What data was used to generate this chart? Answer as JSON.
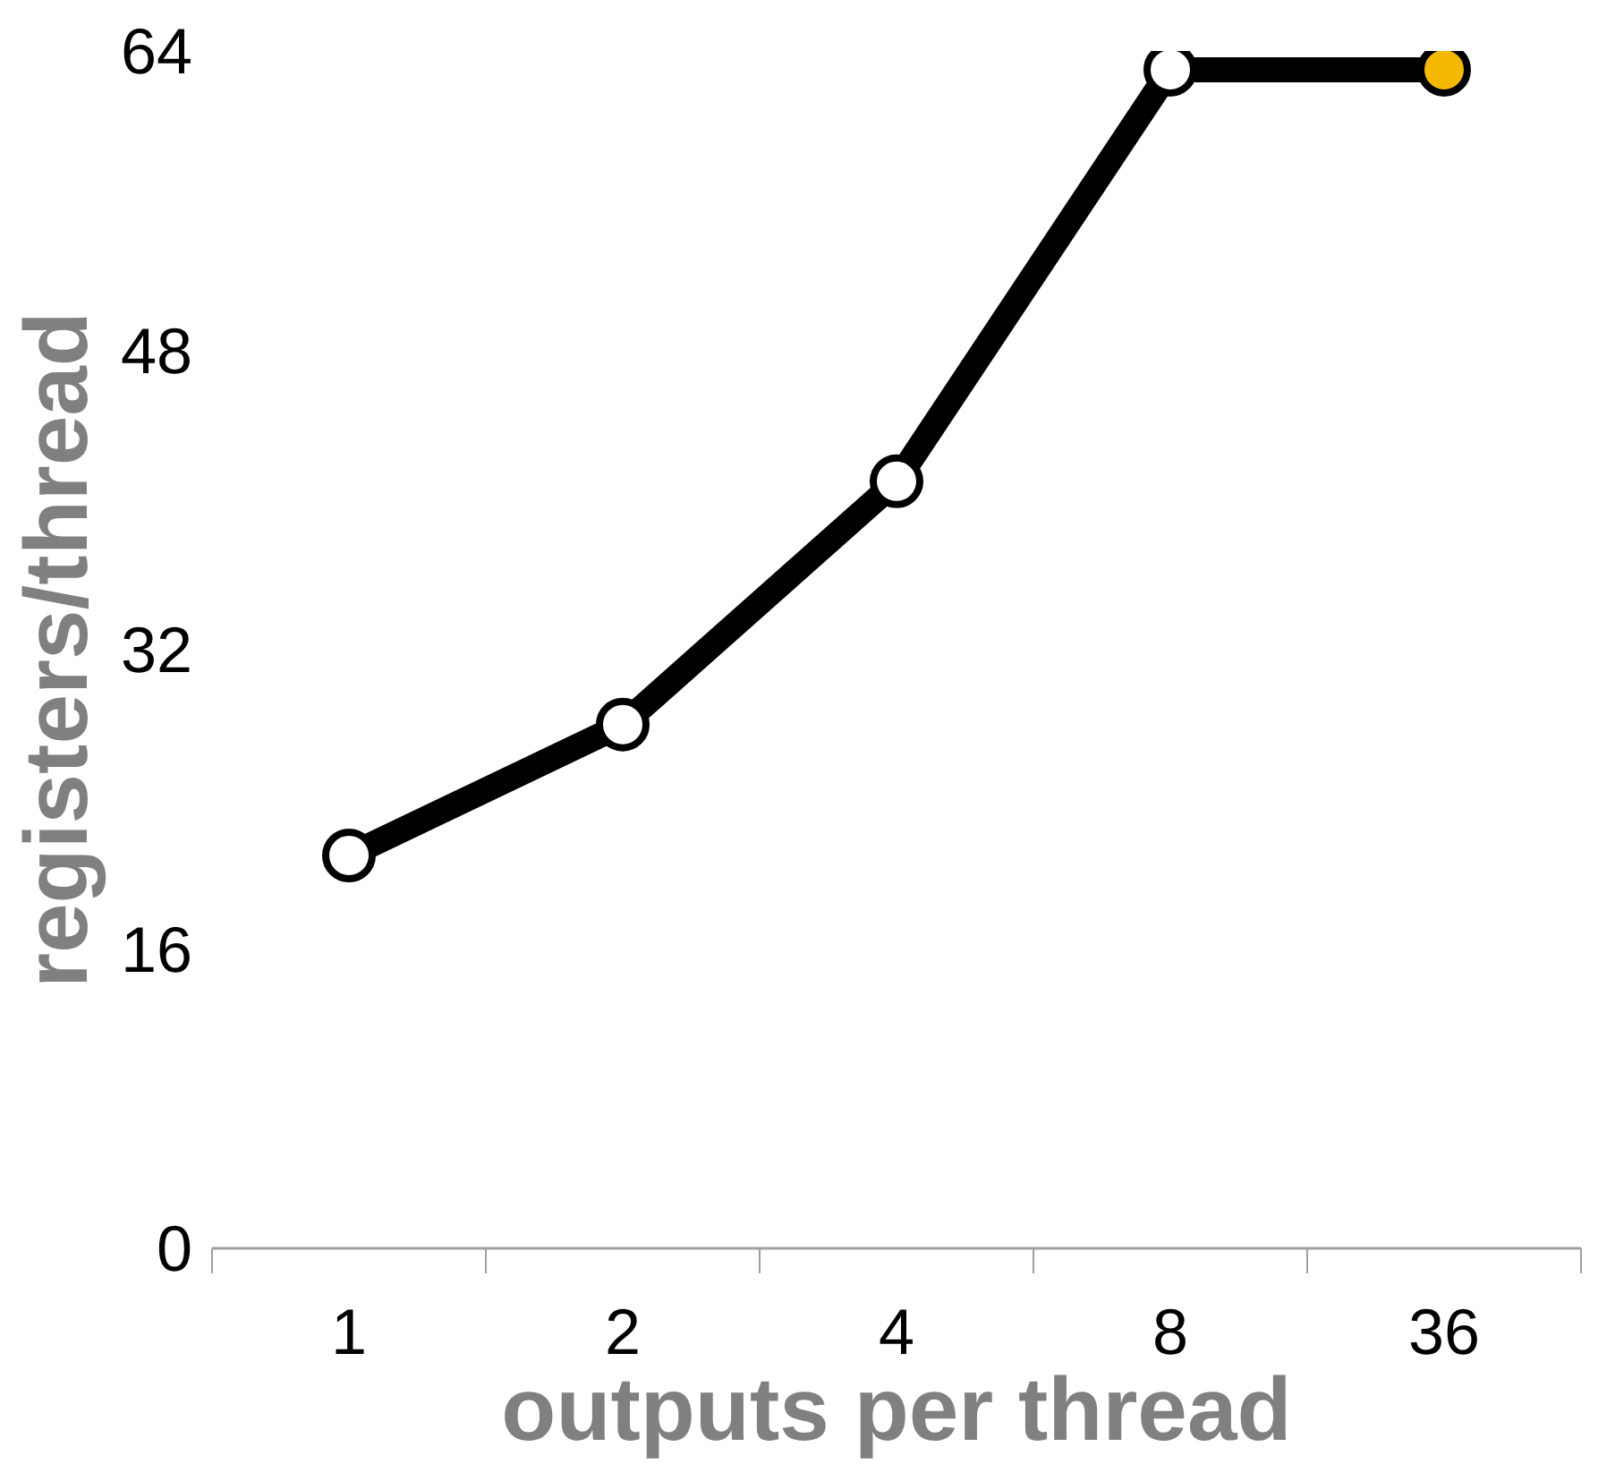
{
  "chart_data": {
    "type": "line",
    "xlabel": "outputs per thread",
    "ylabel": "registers/thread",
    "categories": [
      "1",
      "2",
      "4",
      "8",
      "36"
    ],
    "series": [
      {
        "color": "#000000",
        "values": [
          21,
          28,
          41,
          63,
          63
        ],
        "colors": [
          "#ffffff",
          "#ffffff",
          "#ffffff",
          "#ffffff",
          "#f5b800"
        ]
      }
    ],
    "ylim": [
      0,
      64
    ],
    "yticks": [
      0,
      16,
      32,
      48,
      64
    ],
    "grid": false,
    "marker": "circle",
    "line_style": "solid"
  }
}
